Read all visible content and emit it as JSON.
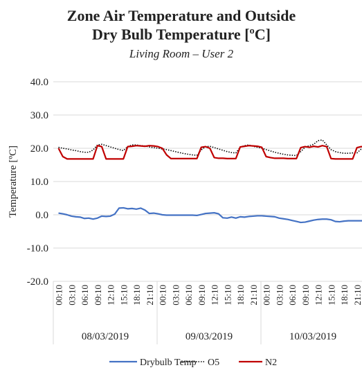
{
  "chart_data": {
    "type": "line",
    "title": [
      "Zone Air Temperature and Outside",
      "Dry Bulb Temperature [ºC]"
    ],
    "subtitle": "Living Room – User 2",
    "y_label": "Temperature [ºC]",
    "ylim": [
      -20,
      40
    ],
    "yticks": [
      {
        "value": -20,
        "label": "-20.0"
      },
      {
        "value": -10,
        "label": "-10.0"
      },
      {
        "value": 0,
        "label": "0.0"
      },
      {
        "value": 10,
        "label": "10.0"
      },
      {
        "value": 20,
        "label": "20.0"
      },
      {
        "value": 30,
        "label": "30.0"
      },
      {
        "value": 40,
        "label": "40.0"
      }
    ],
    "grid": true,
    "legend": "bottom",
    "groups": [
      "08/03/2019",
      "09/03/2019",
      "10/03/2019"
    ],
    "categories": [
      "00:10",
      null,
      null,
      "03:10",
      null,
      null,
      "06:10",
      null,
      null,
      "09:10",
      null,
      null,
      "12:10",
      null,
      null,
      "15:10",
      null,
      null,
      "18:10",
      null,
      null,
      "21:10",
      null,
      null,
      "00:10",
      null,
      null,
      "03:10",
      null,
      null,
      "06:10",
      null,
      null,
      "09:10",
      null,
      null,
      "12:10",
      null,
      null,
      "15:10",
      null,
      null,
      "18:10",
      null,
      null,
      "21:10",
      null,
      null,
      "00:10",
      null,
      null,
      "03:10",
      null,
      null,
      "06:10",
      null,
      null,
      "09:10",
      null,
      null,
      "12:10",
      null,
      null,
      "15:10",
      null,
      null,
      "18:10",
      null,
      null,
      "21:10",
      null,
      null
    ],
    "series": [
      {
        "name": "Drybulb Temp",
        "color": "#4472c4",
        "dash": "solid",
        "values": [
          0.5,
          0.3,
          0,
          -0.4,
          -0.6,
          -0.7,
          -1.1,
          -1.0,
          -1.3,
          -1.0,
          -0.4,
          -0.5,
          -0.4,
          0.2,
          2.0,
          2.1,
          1.8,
          1.9,
          1.7,
          2.0,
          1.4,
          0.4,
          0.5,
          0.3,
          0,
          -0.1,
          -0.1,
          -0.1,
          -0.1,
          -0.1,
          -0.1,
          -0.1,
          -0.2,
          0.1,
          0.4,
          0.5,
          0.6,
          0.3,
          -0.9,
          -1.0,
          -0.7,
          -1.0,
          -0.6,
          -0.7,
          -0.5,
          -0.4,
          -0.3,
          -0.3,
          -0.4,
          -0.5,
          -0.6,
          -1.0,
          -1.2,
          -1.4,
          -1.7,
          -2.0,
          -2.3,
          -2.2,
          -1.9,
          -1.6,
          -1.4,
          -1.3,
          -1.3,
          -1.5,
          -2.0,
          -2.1,
          -1.9,
          -1.8,
          -1.8,
          -1.8,
          -1.8,
          -1.8
        ]
      },
      {
        "name": "O5",
        "color": "#000000",
        "dash": "dotted",
        "values": [
          20.3,
          20.0,
          19.8,
          19.5,
          19.3,
          19.0,
          18.8,
          18.8,
          19.5,
          21.0,
          21.2,
          20.8,
          20.4,
          20.0,
          19.6,
          19.3,
          20.5,
          21.0,
          21.0,
          20.8,
          20.7,
          20.4,
          20.2,
          20.0,
          19.8,
          19.6,
          19.3,
          19.0,
          18.7,
          18.4,
          18.2,
          18.0,
          17.9,
          19.5,
          20.5,
          20.6,
          20.2,
          19.8,
          19.4,
          19.0,
          18.7,
          18.6,
          20.3,
          20.8,
          21.0,
          20.6,
          20.3,
          20.0,
          19.6,
          19.2,
          18.8,
          18.5,
          18.2,
          18.0,
          17.9,
          17.8,
          19.0,
          20.3,
          20.8,
          21.2,
          22.3,
          22.5,
          21.0,
          19.6,
          19.0,
          18.7,
          18.5,
          18.5,
          18.6,
          18.6,
          19.8,
          19.5
        ]
      },
      {
        "name": "N2",
        "color": "#c00000",
        "dash": "solid",
        "values": [
          20.0,
          17.5,
          16.8,
          16.8,
          16.8,
          16.8,
          16.8,
          16.8,
          16.8,
          20.8,
          20.5,
          16.8,
          16.8,
          16.8,
          16.8,
          16.8,
          20.5,
          20.6,
          20.8,
          20.7,
          20.6,
          20.8,
          20.7,
          20.5,
          20.0,
          18.0,
          16.9,
          16.9,
          16.9,
          16.9,
          16.9,
          16.9,
          16.9,
          20.3,
          20.5,
          20.0,
          17.2,
          17.0,
          17.0,
          16.9,
          16.9,
          16.9,
          20.4,
          20.6,
          20.8,
          20.7,
          20.6,
          20.3,
          17.5,
          17.2,
          17.0,
          17.0,
          17.0,
          16.9,
          16.9,
          16.9,
          20.2,
          20.5,
          20.3,
          20.6,
          20.4,
          20.8,
          20.5,
          16.9,
          16.8,
          16.8,
          16.8,
          16.8,
          16.8,
          20.2,
          20.5,
          20.3
        ]
      }
    ]
  }
}
